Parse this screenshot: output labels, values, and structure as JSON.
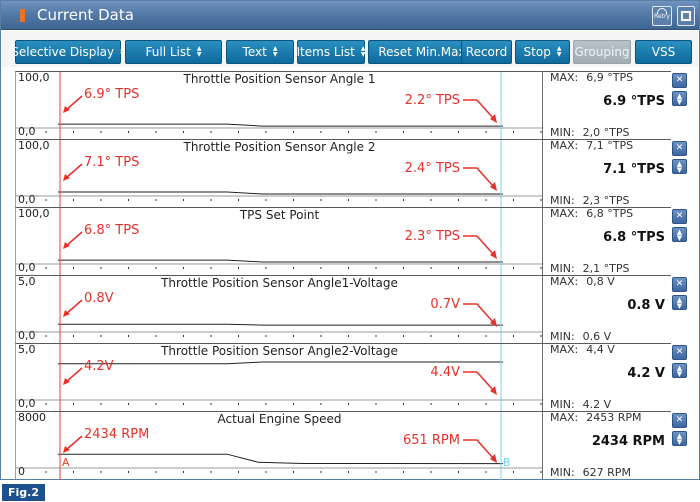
{
  "window": {
    "title": "Current Data",
    "retry_label": "Retry"
  },
  "toolbar": {
    "buttons": [
      {
        "label": "Selective Display",
        "stepper": true,
        "enabled": true
      },
      {
        "label": "Full List",
        "stepper": true,
        "enabled": true
      },
      {
        "label": "Text",
        "stepper": true,
        "enabled": true
      },
      {
        "label": "Items List",
        "stepper": true,
        "enabled": true
      },
      {
        "label": "Reset Min.Max",
        "stepper": false,
        "enabled": true
      },
      {
        "label": "Record",
        "stepper": false,
        "enabled": true
      },
      {
        "label": "Stop",
        "stepper": true,
        "enabled": true
      },
      {
        "label": "Grouping",
        "stepper": false,
        "enabled": false
      },
      {
        "label": "VSS",
        "stepper": false,
        "enabled": true
      }
    ]
  },
  "cursors": {
    "a_label": "A",
    "b_label": "B"
  },
  "panels": [
    {
      "title": "Throttle Position Sensor Angle 1",
      "scale_top": "100,0",
      "scale_bottom": "0,0",
      "max_label": "MAX:",
      "max_value": "6,9 °TPS",
      "min_label": "MIN:",
      "min_value": "2,0 °TPS",
      "current": "6.9 °TPS",
      "annot_a": "6.9° TPS",
      "annot_b": "2.2° TPS",
      "y_max": 100,
      "y_min": 0,
      "signal": [
        {
          "t": 0,
          "v": 6.9
        },
        {
          "t": 0.38,
          "v": 6.9
        },
        {
          "t": 0.46,
          "v": 2.2
        },
        {
          "t": 1,
          "v": 2.2
        }
      ]
    },
    {
      "title": "Throttle Position Sensor Angle 2",
      "scale_top": "100,0",
      "scale_bottom": "0,0",
      "max_label": "MAX:",
      "max_value": "7,1 °TPS",
      "min_label": "MIN:",
      "min_value": "2,3 °TPS",
      "current": "7.1 °TPS",
      "annot_a": "7.1° TPS",
      "annot_b": "2.4° TPS",
      "y_max": 100,
      "y_min": 0,
      "signal": [
        {
          "t": 0,
          "v": 7.1
        },
        {
          "t": 0.38,
          "v": 7.1
        },
        {
          "t": 0.46,
          "v": 2.4
        },
        {
          "t": 1,
          "v": 2.4
        }
      ]
    },
    {
      "title": "TPS Set Point",
      "scale_top": "100,0",
      "scale_bottom": "0,0",
      "max_label": "MAX:",
      "max_value": "6,8 °TPS",
      "min_label": "MIN:",
      "min_value": "2,1 °TPS",
      "current": "6.8 °TPS",
      "annot_a": "6.8° TPS",
      "annot_b": "2.3° TPS",
      "y_max": 100,
      "y_min": 0,
      "signal": [
        {
          "t": 0,
          "v": 6.8
        },
        {
          "t": 0.38,
          "v": 6.8
        },
        {
          "t": 0.46,
          "v": 2.3
        },
        {
          "t": 1,
          "v": 2.3
        }
      ]
    },
    {
      "title": "Throttle Position Sensor Angle1-Voltage",
      "scale_top": "5,0",
      "scale_bottom": "0,0",
      "max_label": "MAX:",
      "max_value": "0,8 V",
      "min_label": "MIN:",
      "min_value": "0.6 V",
      "current": "0.8 V",
      "annot_a": "0.8V",
      "annot_b": "0.7V",
      "y_max": 5,
      "y_min": 0,
      "signal": [
        {
          "t": 0,
          "v": 0.8
        },
        {
          "t": 0.38,
          "v": 0.8
        },
        {
          "t": 0.46,
          "v": 0.7
        },
        {
          "t": 1,
          "v": 0.7
        }
      ]
    },
    {
      "title": "Throttle Position Sensor Angle2-Voltage",
      "scale_top": "5,0",
      "scale_bottom": "0,0",
      "max_label": "MAX:",
      "max_value": "4,4 V",
      "min_label": "MIN:",
      "min_value": "4.2 V",
      "current": "4.2 V",
      "annot_a": "4.2V",
      "annot_b": "4.4V",
      "y_max": 5,
      "y_min": 0,
      "signal": [
        {
          "t": 0,
          "v": 4.2
        },
        {
          "t": 0.38,
          "v": 4.2
        },
        {
          "t": 0.46,
          "v": 4.4
        },
        {
          "t": 1,
          "v": 4.4
        }
      ]
    },
    {
      "title": "Actual Engine Speed",
      "scale_top": "8000",
      "scale_bottom": "0",
      "max_label": "MAX:",
      "max_value": "2453 RPM",
      "min_label": "MIN:",
      "min_value": "627 RPM",
      "current": "2434 RPM",
      "annot_a": "2434 RPM",
      "annot_b": "651 RPM",
      "y_max": 8000,
      "y_min": 0,
      "signal": [
        {
          "t": 0,
          "v": 2434
        },
        {
          "t": 0.38,
          "v": 2434
        },
        {
          "t": 0.45,
          "v": 900
        },
        {
          "t": 0.55,
          "v": 660
        },
        {
          "t": 1,
          "v": 651
        }
      ]
    }
  ],
  "figure_label": "Fig.2",
  "colors": {
    "cursor_a": "#e8402a",
    "cursor_b": "#79d3e6",
    "annotation": "#e8302a",
    "toolbar_button": "#1a7bad",
    "title_bar": "#4f75a3"
  }
}
